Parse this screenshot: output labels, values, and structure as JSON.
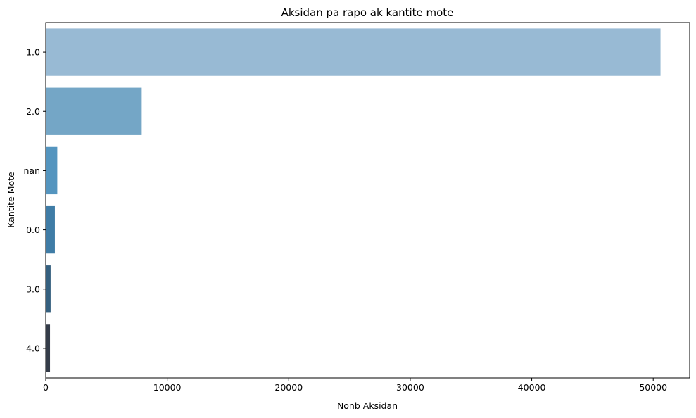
{
  "chart_data": {
    "type": "bar",
    "orientation": "horizontal",
    "title": "Aksidan pa rapo ak kantite mote",
    "xlabel": "Nonb Aksidan",
    "ylabel": "Kantite Mote",
    "categories": [
      "1.0",
      "2.0",
      "nan",
      "0.0",
      "3.0",
      "4.0"
    ],
    "values": [
      50600,
      7900,
      950,
      750,
      400,
      350
    ],
    "xlim": [
      0,
      53000
    ],
    "xticks": [
      0,
      10000,
      20000,
      30000,
      40000,
      50000
    ],
    "xtick_labels": [
      "0",
      "10000",
      "20000",
      "30000",
      "40000",
      "50000"
    ],
    "colors": [
      "#98bad4",
      "#74a6c6",
      "#5495bf",
      "#3f7ca6",
      "#35607f",
      "#343c49"
    ],
    "grid": false,
    "legend": "none"
  }
}
